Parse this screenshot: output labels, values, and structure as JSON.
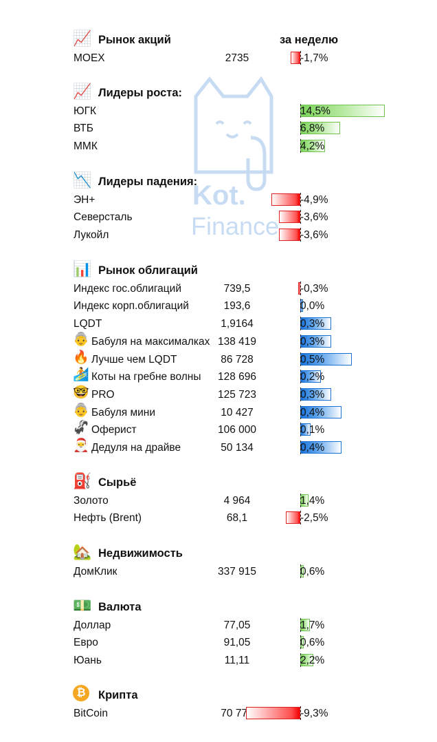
{
  "header": {
    "week_label": "за неделю"
  },
  "watermark": {
    "line1": "Kot.",
    "line2": "Finance"
  },
  "colors": {
    "negative": "#ff0000",
    "positive_bond": "#1a73d9",
    "positive_growth": "#7bd35a"
  },
  "sections": [
    {
      "title": "Рынок акций",
      "icon": "chart-up-icon",
      "icon_glyph": "📈",
      "show_header": true,
      "items": [
        {
          "name": "MOEX",
          "value": "2735",
          "change": "-1,7%",
          "pct": -1.7,
          "style": "neg"
        }
      ]
    },
    {
      "title": "Лидеры роста:",
      "icon": "chart-growth-icon",
      "icon_glyph": "📈",
      "items": [
        {
          "name": "ЮГК",
          "value": "",
          "change": "14,5%",
          "pct": 14.5,
          "style": "posg"
        },
        {
          "name": "ВТБ",
          "value": "",
          "change": "6,8%",
          "pct": 6.8,
          "style": "posg"
        },
        {
          "name": "ММК",
          "value": "",
          "change": "4,2%",
          "pct": 4.2,
          "style": "posg"
        }
      ]
    },
    {
      "title": "Лидеры падения:",
      "icon": "chart-down-icon",
      "icon_glyph": "📉",
      "items": [
        {
          "name": "ЭН+",
          "value": "",
          "change": "-4,9%",
          "pct": -4.9,
          "style": "neg"
        },
        {
          "name": "Северсталь",
          "value": "",
          "change": "-3,6%",
          "pct": -3.6,
          "style": "neg"
        },
        {
          "name": "Лукойл",
          "value": "",
          "change": "-3,6%",
          "pct": -3.6,
          "style": "neg"
        }
      ]
    },
    {
      "title": "Рынок облигаций",
      "icon": "bar-chart-icon",
      "icon_glyph": "📊",
      "items": [
        {
          "name": "Индекс гос.облигаций",
          "value": "739,5",
          "change": "-0,3%",
          "pct": -0.3,
          "style": "neg"
        },
        {
          "name": "Индекс корп.облигаций",
          "value": "193,6",
          "change": "0,0%",
          "pct": 0.0,
          "style": "posb"
        },
        {
          "name": "LQDT",
          "value": "1,9164",
          "change": "0,3%",
          "pct": 0.3,
          "style": "posb"
        },
        {
          "name": "Бабуля на максималках",
          "icon": "grandma-icon",
          "icon_glyph": "👵",
          "value": "138 419",
          "change": "0,3%",
          "pct": 0.3,
          "style": "posb"
        },
        {
          "name": "Лучше чем LQDT",
          "icon": "fire-icon",
          "icon_glyph": "🔥",
          "value": "86 728",
          "change": "0,5%",
          "pct": 0.5,
          "style": "posb"
        },
        {
          "name": "Коты на гребне волны",
          "icon": "surfer-icon",
          "icon_glyph": "🏄",
          "value": "128 696",
          "change": "0,2%",
          "pct": 0.2,
          "style": "posb"
        },
        {
          "name": "PRO",
          "icon": "nerd-glasses-icon",
          "icon_glyph": "🤓",
          "value": "125 723",
          "change": "0,3%",
          "pct": 0.3,
          "style": "posb"
        },
        {
          "name": "Бабуля мини",
          "icon": "grandma-icon",
          "icon_glyph": "👵",
          "value": "10 427",
          "change": "0,4%",
          "pct": 0.4,
          "style": "posb"
        },
        {
          "name": "Оферист",
          "icon": "skunk-icon",
          "icon_glyph": "🦨",
          "value": "106 000",
          "change": "0,1%",
          "pct": 0.1,
          "style": "posb"
        },
        {
          "name": "Дедуля на драйве",
          "icon": "santa-icon",
          "icon_glyph": "🎅",
          "value": "50 134",
          "change": "0,4%",
          "pct": 0.4,
          "style": "posb"
        }
      ]
    },
    {
      "title": "Сырьё",
      "icon": "oil-pump-icon",
      "icon_glyph": "⛽",
      "items": [
        {
          "name": "Золото",
          "value": "4 964",
          "change": "1,4%",
          "pct": 1.4,
          "style": "posg"
        },
        {
          "name": "Нефть (Brent)",
          "value": "68,1",
          "change": "-2,5%",
          "pct": -2.5,
          "style": "neg"
        }
      ]
    },
    {
      "title": "Недвижимость",
      "icon": "house-icon",
      "icon_glyph": "🏡",
      "items": [
        {
          "name": "ДомКлик",
          "value": "337 915",
          "change": "0,6%",
          "pct": 0.6,
          "style": "posg"
        }
      ]
    },
    {
      "title": "Валюта",
      "icon": "banknote-icon",
      "icon_glyph": "💵",
      "items": [
        {
          "name": "Доллар",
          "value": "77,05",
          "change": "1,7%",
          "pct": 1.7,
          "style": "posg"
        },
        {
          "name": "Евро",
          "value": "91,05",
          "change": "0,6%",
          "pct": 0.6,
          "style": "posg"
        },
        {
          "name": "Юань",
          "value": "11,11",
          "change": "2,2%",
          "pct": 2.2,
          "style": "posg"
        }
      ]
    },
    {
      "title": "Крипта",
      "icon": "bitcoin-icon",
      "icon_glyph": "₿",
      "items": [
        {
          "name": "BitCoin",
          "value": "70 777",
          "change": "-9,3%",
          "pct": -9.3,
          "style": "neg"
        }
      ]
    }
  ]
}
